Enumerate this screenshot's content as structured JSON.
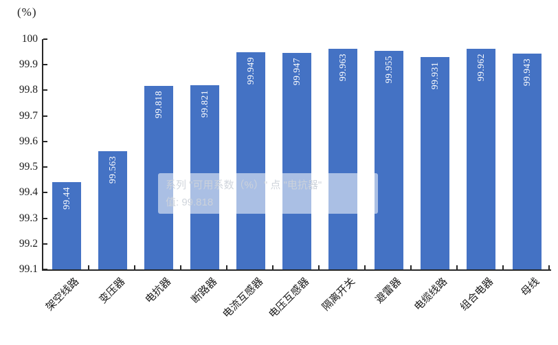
{
  "chart_data": {
    "type": "bar",
    "title": "",
    "unit_label": "(%)",
    "series_name": "可用系数（%）",
    "categories": [
      "架空线路",
      "变压器",
      "电抗器",
      "断路器",
      "电流互感器",
      "电压互感器",
      "隔离开关",
      "避雷器",
      "电缆线路",
      "组合电器",
      "母线"
    ],
    "values": [
      99.44,
      99.563,
      99.818,
      99.821,
      99.949,
      99.947,
      99.963,
      99.955,
      99.931,
      99.962,
      99.943
    ],
    "data_labels": [
      "99.44",
      "99.563",
      "99.818",
      "99.821",
      "99.949",
      "99.947",
      "99.963",
      "99.955",
      "99.931",
      "99.962",
      "99.943"
    ],
    "ylim": [
      99.1,
      100
    ],
    "yticks": [
      "100",
      "99.9",
      "99.8",
      "99.7",
      "99.6",
      "99.5",
      "99.4",
      "99.3",
      "99.2",
      "99.1"
    ],
    "grid": false,
    "legend_position": "none",
    "bar_color": "#4472C4",
    "bar_label_color": "#FFFFFF",
    "axis_color": "#262626"
  },
  "tooltip": {
    "line1": "系列 \"可用系数（%）\" 点 \"电抗器\"",
    "line2": "值: 99.818"
  }
}
